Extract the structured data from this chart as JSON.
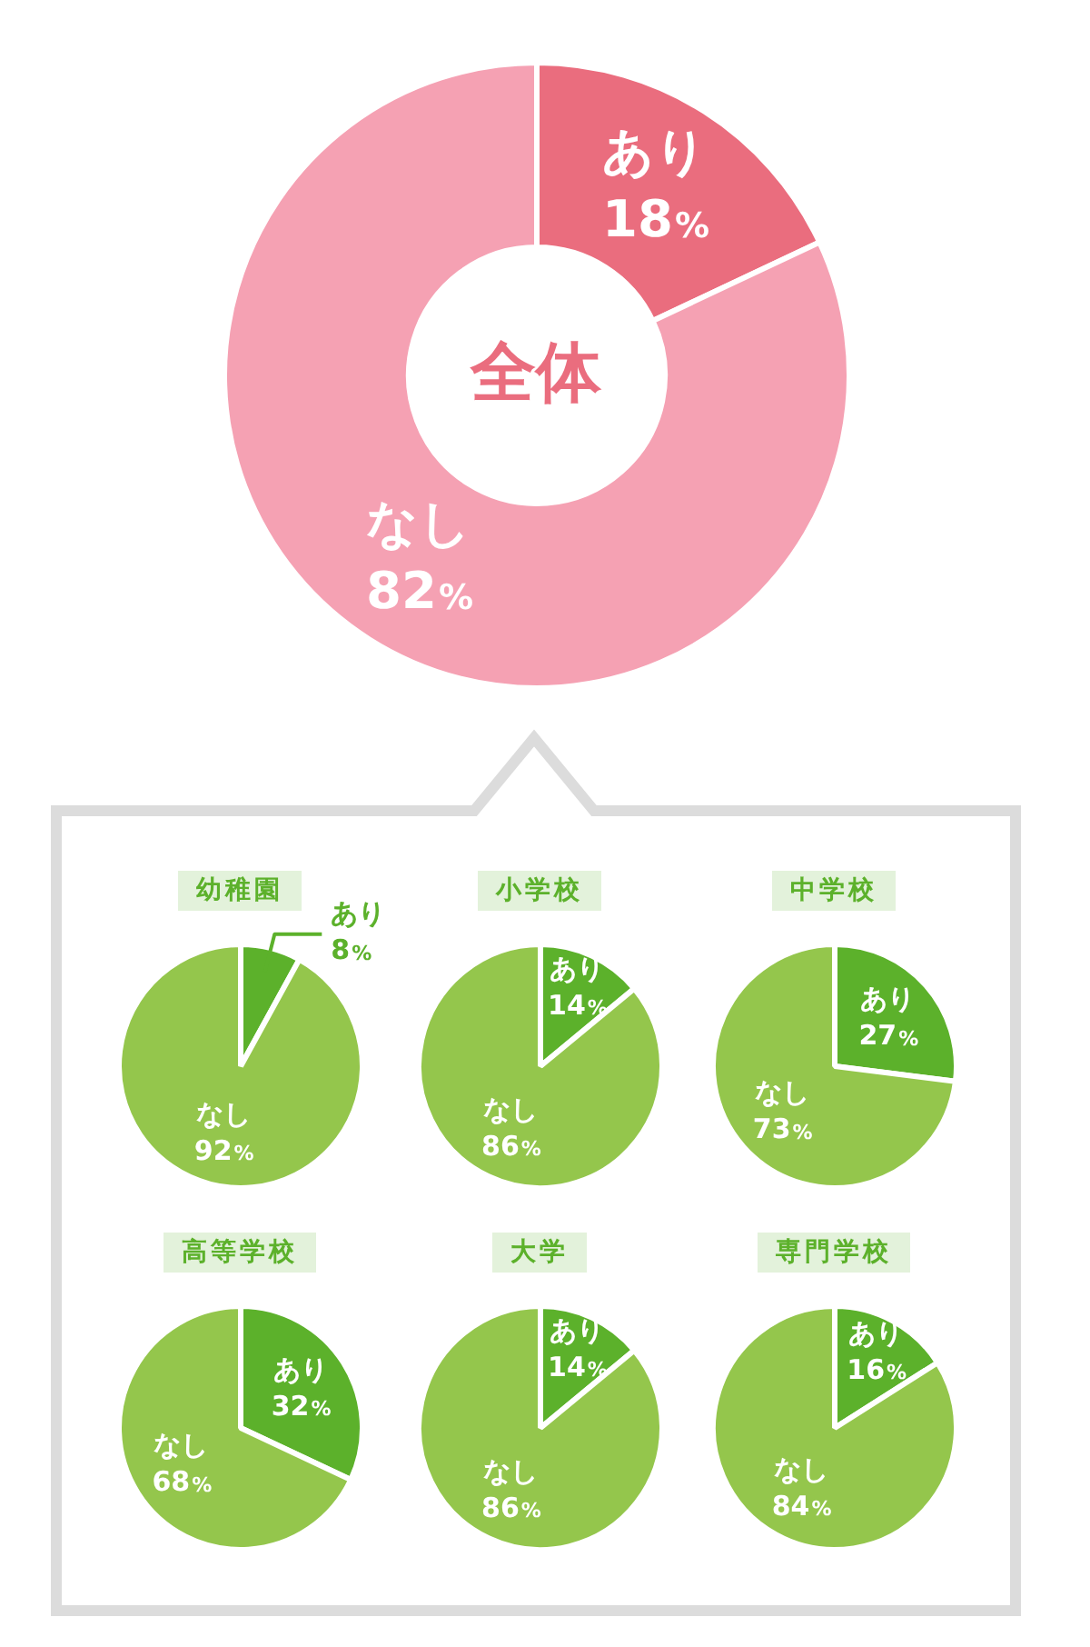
{
  "chart_data": [
    {
      "type": "donut",
      "title": "全体",
      "categories": [
        "あり",
        "なし"
      ],
      "values": [
        18,
        82
      ],
      "colors": [
        "#ea6d7e",
        "#f5a1b3"
      ],
      "value_labels": [
        "18%",
        "82%"
      ]
    },
    {
      "type": "pie",
      "title": "幼稚園",
      "categories": [
        "あり",
        "なし"
      ],
      "values": [
        8,
        92
      ],
      "colors": [
        "#5cb12b",
        "#94c64c"
      ],
      "value_labels": [
        "8%",
        "92%"
      ]
    },
    {
      "type": "pie",
      "title": "小学校",
      "categories": [
        "あり",
        "なし"
      ],
      "values": [
        14,
        86
      ],
      "colors": [
        "#5cb12b",
        "#94c64c"
      ],
      "value_labels": [
        "14%",
        "86%"
      ]
    },
    {
      "type": "pie",
      "title": "中学校",
      "categories": [
        "あり",
        "なし"
      ],
      "values": [
        27,
        73
      ],
      "colors": [
        "#5cb12b",
        "#94c64c"
      ],
      "value_labels": [
        "27%",
        "73%"
      ]
    },
    {
      "type": "pie",
      "title": "高等学校",
      "categories": [
        "あり",
        "なし"
      ],
      "values": [
        32,
        68
      ],
      "colors": [
        "#5cb12b",
        "#94c64c"
      ],
      "value_labels": [
        "32%",
        "68%"
      ]
    },
    {
      "type": "pie",
      "title": "大学",
      "categories": [
        "あり",
        "なし"
      ],
      "values": [
        14,
        86
      ],
      "colors": [
        "#5cb12b",
        "#94c64c"
      ],
      "value_labels": [
        "14%",
        "86%"
      ]
    },
    {
      "type": "pie",
      "title": "専門学校",
      "categories": [
        "あり",
        "なし"
      ],
      "values": [
        16,
        84
      ],
      "colors": [
        "#5cb12b",
        "#94c64c"
      ],
      "value_labels": [
        "16%",
        "84%"
      ]
    }
  ]
}
